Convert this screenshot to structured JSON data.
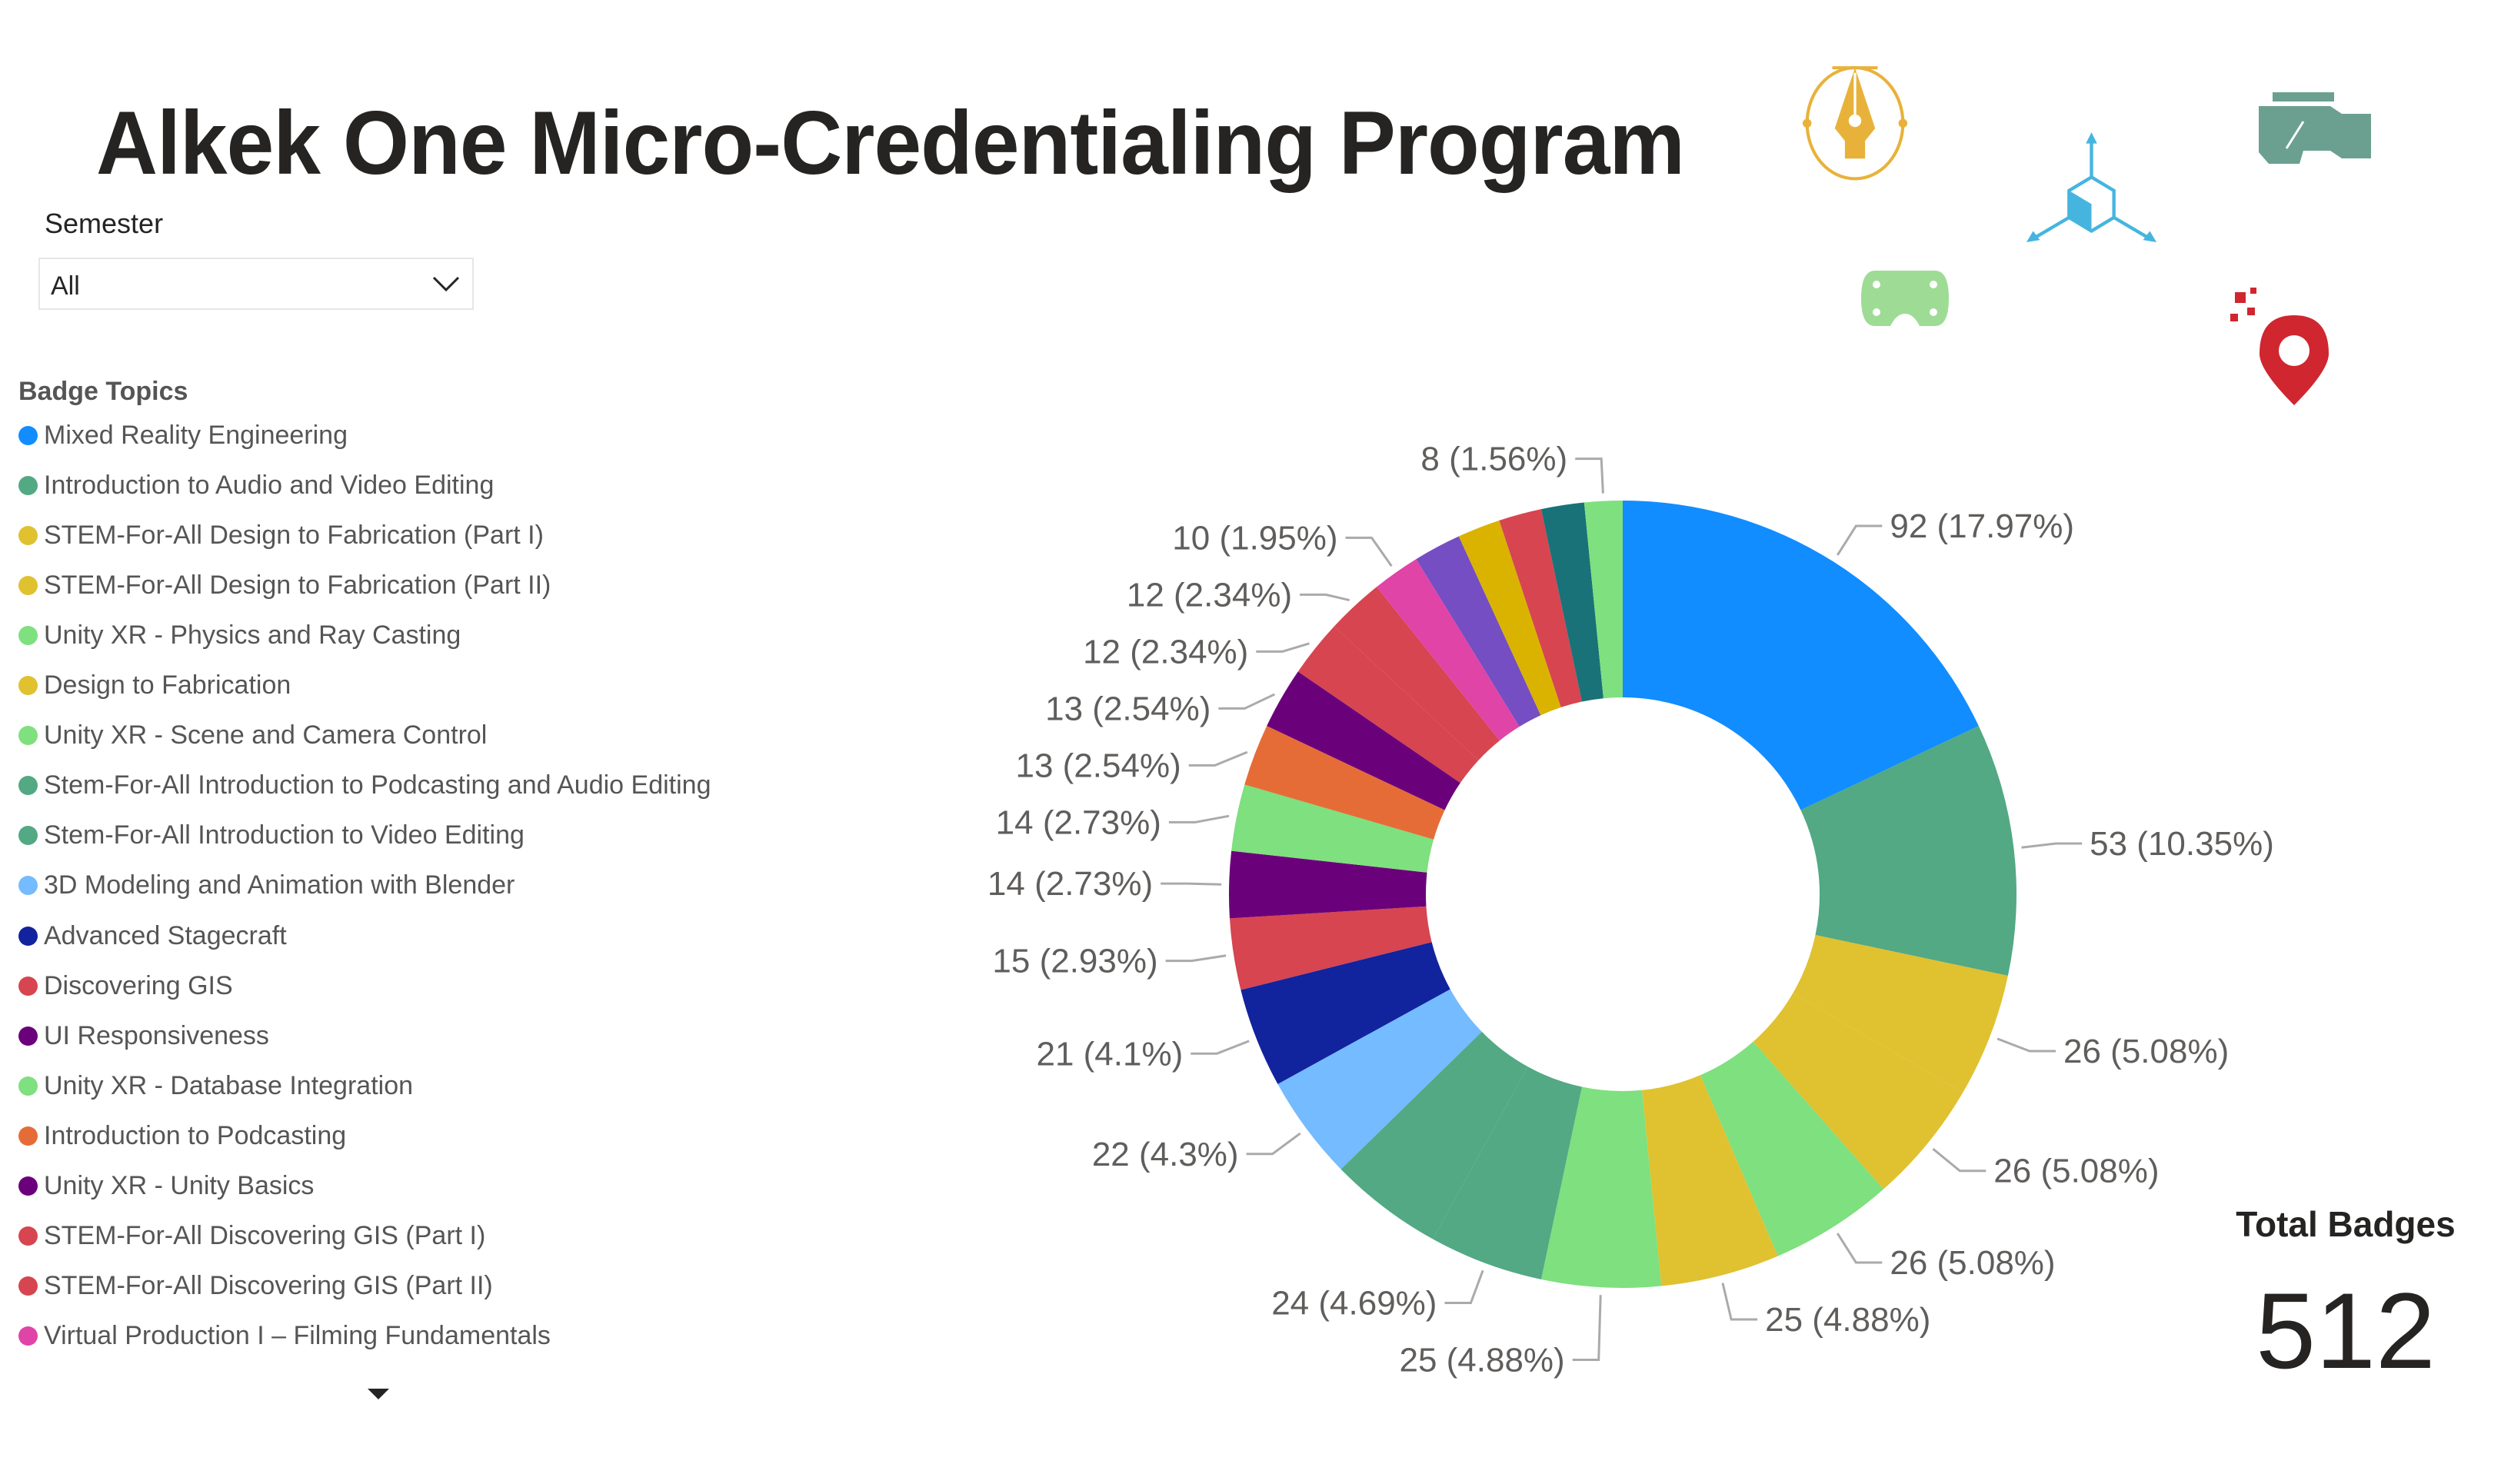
{
  "header": {
    "title": "Alkek One Micro-Credentialing Program"
  },
  "filter": {
    "label": "Semester",
    "selected": "All"
  },
  "legend": {
    "title": "Badge Topics",
    "items": [
      {
        "label": "Mixed Reality Engineering",
        "color": "#118DFF"
      },
      {
        "label": "Introduction to Audio and Video Editing",
        "color": "#52A984"
      },
      {
        "label": "STEM-For-All Design to Fabrication (Part I)",
        "color": "#E0C130"
      },
      {
        "label": "STEM-For-All Design to Fabrication (Part II)",
        "color": "#E0C130"
      },
      {
        "label": "Unity XR - Physics and Ray Casting",
        "color": "#7EE07E"
      },
      {
        "label": "Design to Fabrication",
        "color": "#E0C130"
      },
      {
        "label": "Unity XR - Scene and Camera Control",
        "color": "#7EE07E"
      },
      {
        "label": "Stem-For-All Introduction to Podcasting and Audio Editing",
        "color": "#52A984"
      },
      {
        "label": "Stem-For-All Introduction to Video Editing",
        "color": "#52A984"
      },
      {
        "label": "3D Modeling and Animation with Blender",
        "color": "#74BBFF"
      },
      {
        "label": "Advanced Stagecraft",
        "color": "#12239E"
      },
      {
        "label": "Discovering GIS",
        "color": "#D64550"
      },
      {
        "label": "UI Responsiveness",
        "color": "#6B007B"
      },
      {
        "label": "Unity XR - Database Integration",
        "color": "#7EE07E"
      },
      {
        "label": "Introduction to Podcasting",
        "color": "#E66C37"
      },
      {
        "label": "Unity XR - Unity Basics",
        "color": "#6B007B"
      },
      {
        "label": "STEM-For-All Discovering GIS (Part I)",
        "color": "#D64550"
      },
      {
        "label": "STEM-For-All Discovering GIS (Part II)",
        "color": "#D64550"
      },
      {
        "label": "Virtual Production I – Filming Fundamentals",
        "color": "#E044A7"
      }
    ]
  },
  "chart_data": {
    "type": "donut",
    "title": "",
    "total": 512,
    "label_format": "value (percent)",
    "slices": [
      {
        "value": 92,
        "label": "92 (17.97%)",
        "color": "#118DFF"
      },
      {
        "value": 53,
        "label": "53 (10.35%)",
        "color": "#52A984"
      },
      {
        "value": 26,
        "label": "26 (5.08%)",
        "color": "#E0C130"
      },
      {
        "value": 26,
        "label": "26 (5.08%)",
        "color": "#E0C130"
      },
      {
        "value": 26,
        "label": "26 (5.08%)",
        "color": "#7EE07E"
      },
      {
        "value": 25,
        "label": "25 (4.88%)",
        "color": "#E0C130"
      },
      {
        "value": 25,
        "label": "25 (4.88%)",
        "color": "#7EE07E"
      },
      {
        "value": 24,
        "label": "24 (4.69%)",
        "color": "#52A984"
      },
      {
        "value": 24,
        "label": null,
        "color": "#52A984"
      },
      {
        "value": 22,
        "label": "22 (4.3%)",
        "color": "#74BBFF"
      },
      {
        "value": 21,
        "label": "21 (4.1%)",
        "color": "#12239E"
      },
      {
        "value": 15,
        "label": "15 (2.93%)",
        "color": "#D64550"
      },
      {
        "value": 14,
        "label": "14 (2.73%)",
        "color": "#6B007B"
      },
      {
        "value": 14,
        "label": "14 (2.73%)",
        "color": "#7EE07E"
      },
      {
        "value": 13,
        "label": "13 (2.54%)",
        "color": "#E66C37"
      },
      {
        "value": 13,
        "label": "13 (2.54%)",
        "color": "#6B007B"
      },
      {
        "value": 12,
        "label": "12 (2.34%)",
        "color": "#D64550"
      },
      {
        "value": 12,
        "label": "12 (2.34%)",
        "color": "#D64550"
      },
      {
        "value": 10,
        "label": "10 (1.95%)",
        "color": "#E044A7"
      },
      {
        "value": 10,
        "label": null,
        "color": "#744EC2"
      },
      {
        "value": 9,
        "label": null,
        "color": "#D9B300"
      },
      {
        "value": 9,
        "label": null,
        "color": "#D64550"
      },
      {
        "value": 9,
        "label": null,
        "color": "#197278"
      },
      {
        "value": 8,
        "label": "8 (1.56%)",
        "color": "#7EE07E"
      }
    ]
  },
  "card": {
    "label": "Total Badges",
    "value": "512"
  },
  "icons": [
    "pen-nib-icon",
    "cube-axes-icon",
    "video-camera-icon",
    "vr-headset-icon",
    "map-pin-icon"
  ]
}
